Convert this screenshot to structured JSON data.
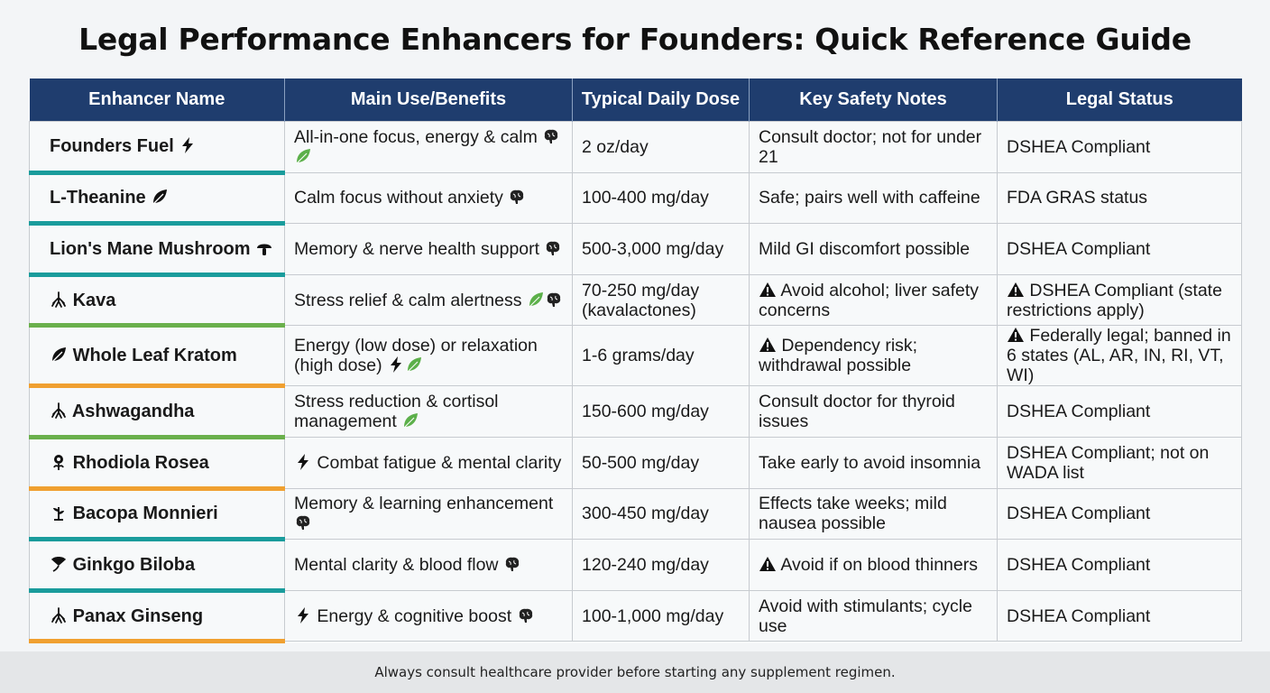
{
  "title": "Legal Performance Enhancers for Founders: Quick Reference Guide",
  "headers": [
    "Enhancer Name",
    "Main Use/Benefits",
    "Typical Daily Dose",
    "Key Safety Notes",
    "Legal Status"
  ],
  "accent_colors": {
    "teal": "#1a9c9c",
    "green": "#6ab04c",
    "orange": "#f0a030"
  },
  "header_color": "#1f3d6e",
  "rows": [
    {
      "name": "Founders Fuel",
      "name_icon": "lightning",
      "name_icon_pos": "after",
      "accent": "teal",
      "benefit": "All-in-one focus, energy & calm",
      "benefit_icons_before": [],
      "benefit_icons_after": [
        "brain",
        "leaf-green"
      ],
      "dose": "2 oz/day",
      "safety": "Consult doctor; not for under 21",
      "safety_warning": false,
      "legal": "DSHEA Compliant",
      "legal_warning": false
    },
    {
      "name": "L-Theanine",
      "name_icon": "leaf",
      "name_icon_pos": "after",
      "accent": "teal",
      "benefit": "Calm focus without anxiety",
      "benefit_icons_before": [],
      "benefit_icons_after": [
        "brain"
      ],
      "dose": "100-400 mg/day",
      "safety": "Safe; pairs well with caffeine",
      "safety_warning": false,
      "legal": "FDA GRAS status",
      "legal_warning": false
    },
    {
      "name": "Lion's Mane Mushroom",
      "name_icon": "mushroom",
      "name_icon_pos": "after",
      "accent": "teal",
      "benefit": "Memory & nerve health support",
      "benefit_icons_before": [],
      "benefit_icons_after": [
        "brain"
      ],
      "dose": "500-3,000 mg/day",
      "safety": "Mild GI discomfort possible",
      "safety_warning": false,
      "legal": "DSHEA Compliant",
      "legal_warning": false
    },
    {
      "name": "Kava",
      "name_icon": "root",
      "name_icon_pos": "before",
      "accent": "green",
      "benefit": "Stress relief & calm alertness",
      "benefit_icons_before": [],
      "benefit_icons_after": [
        "leaf-green",
        "brain"
      ],
      "dose": "70-250 mg/day (kavalactones)",
      "safety": "Avoid alcohol; liver safety concerns",
      "safety_warning": true,
      "legal": "DSHEA Compliant (state restrictions apply)",
      "legal_warning": true
    },
    {
      "name": "Whole Leaf Kratom",
      "name_icon": "leaf",
      "name_icon_pos": "before",
      "accent": "orange",
      "benefit": "Energy (low dose) or relaxation (high dose)",
      "benefit_icons_before": [],
      "benefit_icons_after": [
        "lightning",
        "leaf-green"
      ],
      "dose": "1-6 grams/day",
      "safety": "Dependency risk; withdrawal possible",
      "safety_warning": true,
      "legal": "Federally legal; banned in 6 states (AL, AR, IN, RI, VT, WI)",
      "legal_warning": true
    },
    {
      "name": "Ashwagandha",
      "name_icon": "root",
      "name_icon_pos": "before",
      "accent": "green",
      "benefit": "Stress reduction & cortisol management",
      "benefit_icons_before": [],
      "benefit_icons_after": [
        "leaf-green"
      ],
      "dose": "150-600 mg/day",
      "safety": "Consult doctor for thyroid issues",
      "safety_warning": false,
      "legal": "DSHEA Compliant",
      "legal_warning": false
    },
    {
      "name": "Rhodiola Rosea",
      "name_icon": "flower",
      "name_icon_pos": "before",
      "accent": "orange",
      "benefit": "Combat fatigue & mental clarity",
      "benefit_icons_before": [
        "lightning"
      ],
      "benefit_icons_after": [],
      "dose": "50-500 mg/day",
      "safety": "Take early to avoid insomnia",
      "safety_warning": false,
      "legal": "DSHEA Compliant; not on WADA list",
      "legal_warning": false
    },
    {
      "name": "Bacopa Monnieri",
      "name_icon": "sprout",
      "name_icon_pos": "before",
      "accent": "teal",
      "benefit": "Memory & learning enhancement",
      "benefit_icons_before": [],
      "benefit_icons_after": [
        "brain"
      ],
      "dose": "300-450 mg/day",
      "safety": "Effects take weeks; mild nausea possible",
      "safety_warning": false,
      "legal": "DSHEA Compliant",
      "legal_warning": false
    },
    {
      "name": "Ginkgo Biloba",
      "name_icon": "ginkgo-leaf",
      "name_icon_pos": "before",
      "accent": "teal",
      "benefit": "Mental clarity & blood flow",
      "benefit_icons_before": [],
      "benefit_icons_after": [
        "brain"
      ],
      "dose": "120-240 mg/day",
      "safety": "Avoid if on blood thinners",
      "safety_warning": true,
      "legal": "DSHEA Compliant",
      "legal_warning": false
    },
    {
      "name": "Panax Ginseng",
      "name_icon": "root",
      "name_icon_pos": "before",
      "accent": "orange",
      "benefit": "Energy & cognitive boost",
      "benefit_icons_before": [
        "lightning"
      ],
      "benefit_icons_after": [
        "brain"
      ],
      "dose": "100-1,000 mg/day",
      "safety": "Avoid with stimulants; cycle use",
      "safety_warning": false,
      "legal": "DSHEA Compliant",
      "legal_warning": false
    }
  ],
  "footer": "Always consult healthcare provider before starting any supplement regimen."
}
